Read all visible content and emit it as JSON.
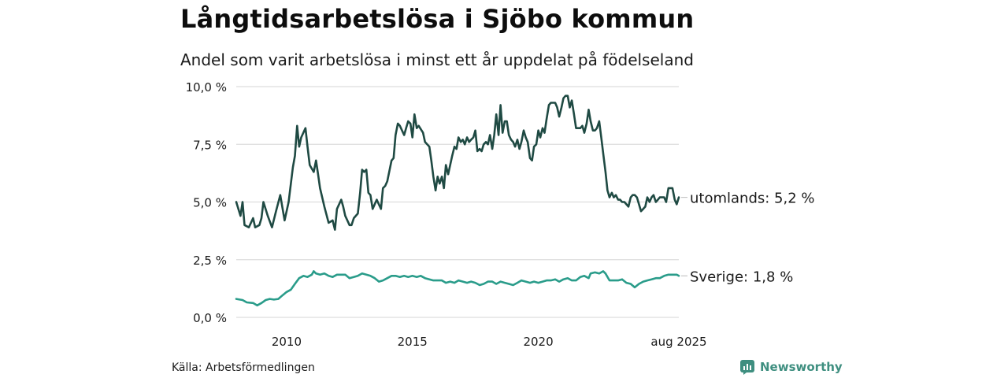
{
  "title": "Långtidsarbetslösa i Sjöbo kommun",
  "subtitle": "Andel som varit arbetslösa i minst ett år uppdelat på födelseland",
  "source": "Källa: Arbetsförmedlingen",
  "brand": "Newsworthy",
  "colors": {
    "utomlands": "#1f4a43",
    "sverige": "#2a9c8a",
    "grid": "#dddddd",
    "brand": "#3f8f80"
  },
  "chart_data": {
    "type": "line",
    "title": "Långtidsarbetslösa i Sjöbo kommun",
    "subtitle": "Andel som varit arbetslösa i minst ett år uppdelat på födelseland",
    "xlabel": "",
    "ylabel": "",
    "ylim": [
      0,
      10
    ],
    "yticks": [
      0,
      2.5,
      5,
      7.5,
      10
    ],
    "ytick_labels": [
      "0,0 %",
      "2,5 %",
      "5,0 %",
      "7,5 %",
      "10,0 %"
    ],
    "xticks": [
      "2010",
      "2015",
      "2020",
      "aug 2025"
    ],
    "xtick_values": [
      2010.0,
      2015.0,
      2020.0,
      2025.583
    ],
    "xlim": [
      2008.0,
      2025.583
    ],
    "grid": true,
    "legend": "inline end-labels",
    "series": [
      {
        "name": "utomlands",
        "end_label": "utomlands: 5,2 %",
        "color": "#1f4a43",
        "points": [
          [
            2008.0,
            5.0
          ],
          [
            2008.17,
            4.4
          ],
          [
            2008.25,
            5.0
          ],
          [
            2008.33,
            4.0
          ],
          [
            2008.5,
            3.9
          ],
          [
            2008.67,
            4.3
          ],
          [
            2008.75,
            3.9
          ],
          [
            2008.92,
            4.0
          ],
          [
            2009.0,
            4.3
          ],
          [
            2009.08,
            5.0
          ],
          [
            2009.25,
            4.4
          ],
          [
            2009.42,
            3.9
          ],
          [
            2009.58,
            4.6
          ],
          [
            2009.75,
            5.3
          ],
          [
            2009.92,
            4.2
          ],
          [
            2010.08,
            5.0
          ],
          [
            2010.25,
            6.5
          ],
          [
            2010.33,
            7.0
          ],
          [
            2010.42,
            8.3
          ],
          [
            2010.5,
            7.4
          ],
          [
            2010.58,
            7.8
          ],
          [
            2010.75,
            8.2
          ],
          [
            2010.83,
            7.4
          ],
          [
            2010.92,
            6.6
          ],
          [
            2011.08,
            6.3
          ],
          [
            2011.17,
            6.8
          ],
          [
            2011.25,
            6.2
          ],
          [
            2011.33,
            5.6
          ],
          [
            2011.5,
            4.8
          ],
          [
            2011.67,
            4.1
          ],
          [
            2011.83,
            4.2
          ],
          [
            2011.92,
            3.8
          ],
          [
            2012.0,
            4.7
          ],
          [
            2012.17,
            5.1
          ],
          [
            2012.25,
            4.8
          ],
          [
            2012.33,
            4.4
          ],
          [
            2012.5,
            4.0
          ],
          [
            2012.58,
            4.0
          ],
          [
            2012.67,
            4.3
          ],
          [
            2012.83,
            4.5
          ],
          [
            2012.92,
            5.4
          ],
          [
            2013.0,
            6.4
          ],
          [
            2013.08,
            6.3
          ],
          [
            2013.17,
            6.4
          ],
          [
            2013.25,
            5.4
          ],
          [
            2013.33,
            5.3
          ],
          [
            2013.42,
            4.7
          ],
          [
            2013.58,
            5.1
          ],
          [
            2013.75,
            4.7
          ],
          [
            2013.83,
            5.6
          ],
          [
            2013.92,
            5.7
          ],
          [
            2014.0,
            5.9
          ],
          [
            2014.17,
            6.8
          ],
          [
            2014.25,
            6.9
          ],
          [
            2014.33,
            7.9
          ],
          [
            2014.42,
            8.4
          ],
          [
            2014.5,
            8.3
          ],
          [
            2014.67,
            7.9
          ],
          [
            2014.75,
            8.2
          ],
          [
            2014.83,
            8.5
          ],
          [
            2014.92,
            8.4
          ],
          [
            2015.0,
            7.8
          ],
          [
            2015.08,
            8.8
          ],
          [
            2015.17,
            8.2
          ],
          [
            2015.25,
            8.3
          ],
          [
            2015.42,
            8.0
          ],
          [
            2015.5,
            7.6
          ],
          [
            2015.67,
            7.4
          ],
          [
            2015.75,
            6.8
          ],
          [
            2015.83,
            6.1
          ],
          [
            2015.92,
            5.5
          ],
          [
            2016.0,
            6.1
          ],
          [
            2016.08,
            5.8
          ],
          [
            2016.17,
            6.1
          ],
          [
            2016.25,
            5.6
          ],
          [
            2016.33,
            6.6
          ],
          [
            2016.42,
            6.2
          ],
          [
            2016.58,
            7.0
          ],
          [
            2016.67,
            7.4
          ],
          [
            2016.75,
            7.3
          ],
          [
            2016.83,
            7.8
          ],
          [
            2016.92,
            7.6
          ],
          [
            2017.0,
            7.7
          ],
          [
            2017.08,
            7.5
          ],
          [
            2017.17,
            7.8
          ],
          [
            2017.25,
            7.6
          ],
          [
            2017.33,
            7.7
          ],
          [
            2017.42,
            7.8
          ],
          [
            2017.5,
            8.1
          ],
          [
            2017.58,
            7.2
          ],
          [
            2017.67,
            7.3
          ],
          [
            2017.75,
            7.2
          ],
          [
            2017.83,
            7.5
          ],
          [
            2017.92,
            7.6
          ],
          [
            2018.0,
            7.5
          ],
          [
            2018.08,
            7.9
          ],
          [
            2018.17,
            7.3
          ],
          [
            2018.25,
            7.9
          ],
          [
            2018.33,
            8.8
          ],
          [
            2018.42,
            7.9
          ],
          [
            2018.5,
            9.2
          ],
          [
            2018.58,
            8.0
          ],
          [
            2018.67,
            8.5
          ],
          [
            2018.75,
            8.5
          ],
          [
            2018.83,
            7.9
          ],
          [
            2018.92,
            7.7
          ],
          [
            2019.0,
            7.6
          ],
          [
            2019.08,
            7.4
          ],
          [
            2019.17,
            7.7
          ],
          [
            2019.25,
            7.3
          ],
          [
            2019.33,
            7.6
          ],
          [
            2019.42,
            8.1
          ],
          [
            2019.5,
            7.8
          ],
          [
            2019.58,
            7.6
          ],
          [
            2019.67,
            6.9
          ],
          [
            2019.75,
            6.8
          ],
          [
            2019.83,
            7.4
          ],
          [
            2019.92,
            7.5
          ],
          [
            2020.0,
            8.1
          ],
          [
            2020.08,
            7.8
          ],
          [
            2020.17,
            8.2
          ],
          [
            2020.25,
            8.0
          ],
          [
            2020.33,
            8.6
          ],
          [
            2020.42,
            9.2
          ],
          [
            2020.5,
            9.3
          ],
          [
            2020.67,
            9.3
          ],
          [
            2020.75,
            9.1
          ],
          [
            2020.83,
            8.7
          ],
          [
            2020.92,
            9.1
          ],
          [
            2021.0,
            9.5
          ],
          [
            2021.08,
            9.6
          ],
          [
            2021.17,
            9.6
          ],
          [
            2021.25,
            9.1
          ],
          [
            2021.33,
            9.4
          ],
          [
            2021.42,
            8.8
          ],
          [
            2021.5,
            8.2
          ],
          [
            2021.58,
            8.2
          ],
          [
            2021.67,
            8.2
          ],
          [
            2021.75,
            8.3
          ],
          [
            2021.83,
            8.0
          ],
          [
            2021.92,
            8.4
          ],
          [
            2022.0,
            9.0
          ],
          [
            2022.08,
            8.5
          ],
          [
            2022.17,
            8.1
          ],
          [
            2022.25,
            8.1
          ],
          [
            2022.33,
            8.2
          ],
          [
            2022.42,
            8.5
          ],
          [
            2022.5,
            7.8
          ],
          [
            2022.58,
            7.1
          ],
          [
            2022.67,
            6.3
          ],
          [
            2022.75,
            5.5
          ],
          [
            2022.83,
            5.2
          ],
          [
            2022.92,
            5.4
          ],
          [
            2023.0,
            5.2
          ],
          [
            2023.08,
            5.3
          ],
          [
            2023.17,
            5.1
          ],
          [
            2023.25,
            5.1
          ],
          [
            2023.33,
            5.0
          ],
          [
            2023.42,
            5.0
          ],
          [
            2023.5,
            4.9
          ],
          [
            2023.58,
            4.8
          ],
          [
            2023.67,
            5.2
          ],
          [
            2023.75,
            5.3
          ],
          [
            2023.83,
            5.3
          ],
          [
            2023.92,
            5.2
          ],
          [
            2024.0,
            4.9
          ],
          [
            2024.08,
            4.6
          ],
          [
            2024.17,
            4.7
          ],
          [
            2024.25,
            4.8
          ],
          [
            2024.33,
            5.2
          ],
          [
            2024.42,
            5.0
          ],
          [
            2024.5,
            5.2
          ],
          [
            2024.58,
            5.3
          ],
          [
            2024.67,
            5.0
          ],
          [
            2024.75,
            5.1
          ],
          [
            2024.83,
            5.2
          ],
          [
            2024.92,
            5.2
          ],
          [
            2025.0,
            5.2
          ],
          [
            2025.08,
            5.0
          ],
          [
            2025.17,
            5.6
          ],
          [
            2025.25,
            5.6
          ],
          [
            2025.33,
            5.6
          ],
          [
            2025.42,
            5.1
          ],
          [
            2025.5,
            4.9
          ],
          [
            2025.583,
            5.2
          ]
        ]
      },
      {
        "name": "Sverige",
        "end_label": "Sverige: 1,8 %",
        "color": "#2a9c8a",
        "points": [
          [
            2008.0,
            0.8
          ],
          [
            2008.25,
            0.75
          ],
          [
            2008.42,
            0.65
          ],
          [
            2008.67,
            0.62
          ],
          [
            2008.83,
            0.52
          ],
          [
            2009.0,
            0.62
          ],
          [
            2009.17,
            0.75
          ],
          [
            2009.33,
            0.8
          ],
          [
            2009.5,
            0.77
          ],
          [
            2009.67,
            0.8
          ],
          [
            2009.83,
            0.95
          ],
          [
            2010.0,
            1.1
          ],
          [
            2010.17,
            1.2
          ],
          [
            2010.33,
            1.45
          ],
          [
            2010.5,
            1.7
          ],
          [
            2010.67,
            1.8
          ],
          [
            2010.83,
            1.75
          ],
          [
            2011.0,
            1.85
          ],
          [
            2011.08,
            2.0
          ],
          [
            2011.17,
            1.9
          ],
          [
            2011.33,
            1.85
          ],
          [
            2011.5,
            1.9
          ],
          [
            2011.67,
            1.8
          ],
          [
            2011.83,
            1.75
          ],
          [
            2012.0,
            1.85
          ],
          [
            2012.17,
            1.85
          ],
          [
            2012.33,
            1.85
          ],
          [
            2012.5,
            1.7
          ],
          [
            2012.67,
            1.75
          ],
          [
            2012.83,
            1.8
          ],
          [
            2013.0,
            1.9
          ],
          [
            2013.17,
            1.85
          ],
          [
            2013.33,
            1.8
          ],
          [
            2013.5,
            1.7
          ],
          [
            2013.67,
            1.55
          ],
          [
            2013.83,
            1.6
          ],
          [
            2014.0,
            1.7
          ],
          [
            2014.17,
            1.8
          ],
          [
            2014.33,
            1.8
          ],
          [
            2014.5,
            1.75
          ],
          [
            2014.67,
            1.8
          ],
          [
            2014.83,
            1.75
          ],
          [
            2015.0,
            1.8
          ],
          [
            2015.17,
            1.75
          ],
          [
            2015.33,
            1.8
          ],
          [
            2015.5,
            1.7
          ],
          [
            2015.67,
            1.65
          ],
          [
            2015.83,
            1.6
          ],
          [
            2016.0,
            1.6
          ],
          [
            2016.17,
            1.6
          ],
          [
            2016.33,
            1.5
          ],
          [
            2016.5,
            1.55
          ],
          [
            2016.67,
            1.5
          ],
          [
            2016.83,
            1.6
          ],
          [
            2017.0,
            1.55
          ],
          [
            2017.17,
            1.5
          ],
          [
            2017.33,
            1.55
          ],
          [
            2017.5,
            1.5
          ],
          [
            2017.67,
            1.4
          ],
          [
            2017.83,
            1.45
          ],
          [
            2018.0,
            1.55
          ],
          [
            2018.17,
            1.55
          ],
          [
            2018.33,
            1.45
          ],
          [
            2018.5,
            1.55
          ],
          [
            2018.67,
            1.5
          ],
          [
            2018.83,
            1.45
          ],
          [
            2019.0,
            1.4
          ],
          [
            2019.17,
            1.5
          ],
          [
            2019.33,
            1.6
          ],
          [
            2019.5,
            1.55
          ],
          [
            2019.67,
            1.5
          ],
          [
            2019.83,
            1.55
          ],
          [
            2020.0,
            1.5
          ],
          [
            2020.17,
            1.55
          ],
          [
            2020.33,
            1.6
          ],
          [
            2020.5,
            1.6
          ],
          [
            2020.67,
            1.65
          ],
          [
            2020.83,
            1.55
          ],
          [
            2021.0,
            1.65
          ],
          [
            2021.17,
            1.7
          ],
          [
            2021.33,
            1.6
          ],
          [
            2021.5,
            1.6
          ],
          [
            2021.67,
            1.75
          ],
          [
            2021.83,
            1.8
          ],
          [
            2022.0,
            1.7
          ],
          [
            2022.08,
            1.9
          ],
          [
            2022.25,
            1.95
          ],
          [
            2022.42,
            1.9
          ],
          [
            2022.58,
            2.0
          ],
          [
            2022.67,
            1.9
          ],
          [
            2022.83,
            1.6
          ],
          [
            2023.0,
            1.6
          ],
          [
            2023.17,
            1.6
          ],
          [
            2023.33,
            1.65
          ],
          [
            2023.5,
            1.5
          ],
          [
            2023.67,
            1.45
          ],
          [
            2023.83,
            1.3
          ],
          [
            2024.0,
            1.45
          ],
          [
            2024.17,
            1.55
          ],
          [
            2024.33,
            1.6
          ],
          [
            2024.5,
            1.65
          ],
          [
            2024.67,
            1.7
          ],
          [
            2024.83,
            1.7
          ],
          [
            2025.0,
            1.8
          ],
          [
            2025.17,
            1.85
          ],
          [
            2025.33,
            1.85
          ],
          [
            2025.5,
            1.85
          ],
          [
            2025.583,
            1.8
          ]
        ]
      }
    ]
  }
}
